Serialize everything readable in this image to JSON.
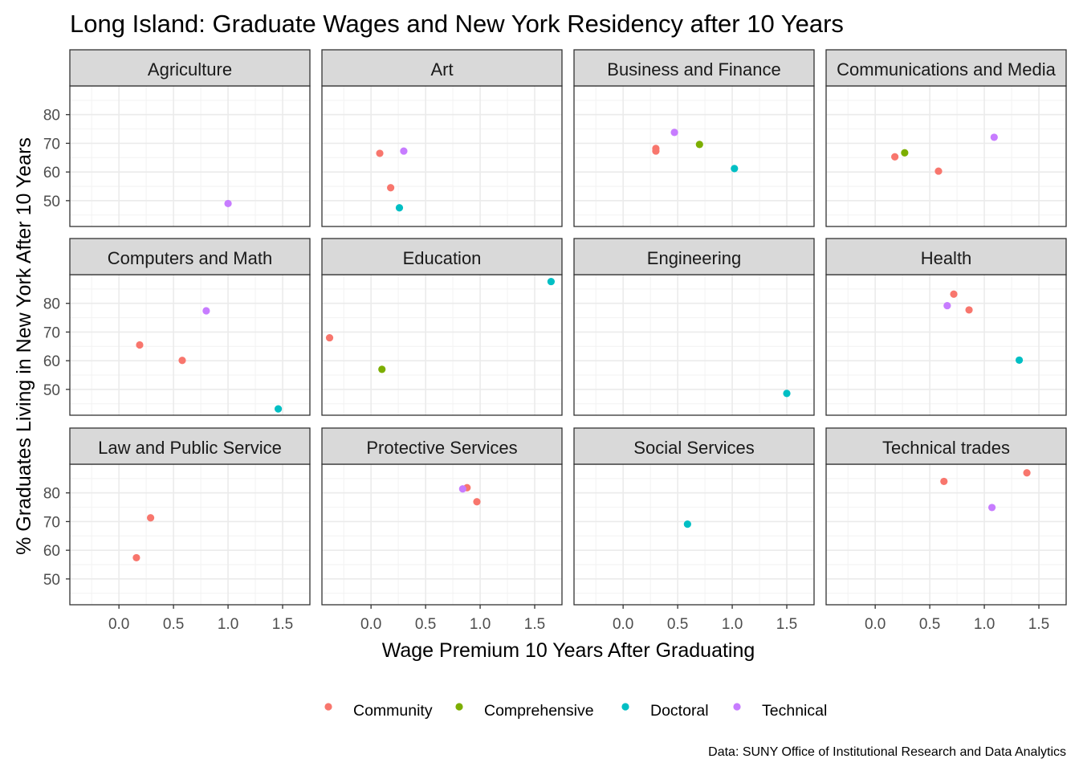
{
  "chart_data": {
    "type": "scatter",
    "title": "Long Island: Graduate Wages and New York Residency after 10 Years",
    "xlabel": "Wage Premium 10 Years After Graduating",
    "ylabel": "% Graduates Living in New York After 10 Years",
    "caption": "Data: SUNY Office of Institutional Research and Data Analytics",
    "xlim": [
      -0.45,
      1.75
    ],
    "ylim": [
      41,
      90
    ],
    "x_ticks": [
      0.0,
      0.5,
      1.0,
      1.5
    ],
    "x_tick_labels": [
      "0.0",
      "0.5",
      "1.0",
      "1.5"
    ],
    "y_ticks": [
      50,
      60,
      70,
      80
    ],
    "y_tick_labels": [
      "50",
      "60",
      "70",
      "80"
    ],
    "grid": true,
    "legend_position": "bottom",
    "legend": [
      {
        "name": "Community",
        "color": "#F8766D"
      },
      {
        "name": "Comprehensive",
        "color": "#7CAE00"
      },
      {
        "name": "Doctoral",
        "color": "#00BFC4"
      },
      {
        "name": "Technical",
        "color": "#C77CFF"
      }
    ],
    "facets": [
      {
        "name": "Agriculture",
        "points": [
          {
            "x": 1.0,
            "y": 49,
            "type": "Technical"
          }
        ]
      },
      {
        "name": "Art",
        "points": [
          {
            "x": 0.08,
            "y": 66.5,
            "type": "Community"
          },
          {
            "x": 0.18,
            "y": 54.5,
            "type": "Community"
          },
          {
            "x": 0.3,
            "y": 67.3,
            "type": "Technical"
          },
          {
            "x": 0.26,
            "y": 47.5,
            "type": "Doctoral"
          }
        ]
      },
      {
        "name": "Business and Finance",
        "points": [
          {
            "x": 0.3,
            "y": 68.2,
            "type": "Community"
          },
          {
            "x": 0.3,
            "y": 67.3,
            "type": "Community"
          },
          {
            "x": 0.47,
            "y": 73.8,
            "type": "Technical"
          },
          {
            "x": 0.7,
            "y": 69.6,
            "type": "Comprehensive"
          },
          {
            "x": 1.02,
            "y": 61.2,
            "type": "Doctoral"
          }
        ]
      },
      {
        "name": "Communications and Media",
        "points": [
          {
            "x": 0.18,
            "y": 65.3,
            "type": "Community"
          },
          {
            "x": 0.27,
            "y": 66.7,
            "type": "Comprehensive"
          },
          {
            "x": 0.58,
            "y": 60.3,
            "type": "Community"
          },
          {
            "x": 1.09,
            "y": 72.1,
            "type": "Technical"
          }
        ]
      },
      {
        "name": "Computers and Math",
        "points": [
          {
            "x": 0.19,
            "y": 65.5,
            "type": "Community"
          },
          {
            "x": 0.58,
            "y": 60.1,
            "type": "Community"
          },
          {
            "x": 0.8,
            "y": 77.4,
            "type": "Technical"
          },
          {
            "x": 1.46,
            "y": 43.2,
            "type": "Doctoral"
          }
        ]
      },
      {
        "name": "Education",
        "points": [
          {
            "x": -0.38,
            "y": 68.0,
            "type": "Community"
          },
          {
            "x": 0.1,
            "y": 57.0,
            "type": "Comprehensive"
          },
          {
            "x": 1.65,
            "y": 87.6,
            "type": "Doctoral"
          }
        ]
      },
      {
        "name": "Engineering",
        "points": [
          {
            "x": 1.5,
            "y": 48.6,
            "type": "Doctoral"
          }
        ]
      },
      {
        "name": "Health",
        "points": [
          {
            "x": 0.72,
            "y": 83.2,
            "type": "Community"
          },
          {
            "x": 0.66,
            "y": 79.2,
            "type": "Technical"
          },
          {
            "x": 0.86,
            "y": 77.7,
            "type": "Community"
          },
          {
            "x": 1.32,
            "y": 60.2,
            "type": "Doctoral"
          }
        ]
      },
      {
        "name": "Law and Public Service",
        "points": [
          {
            "x": 0.29,
            "y": 71.3,
            "type": "Community"
          },
          {
            "x": 0.16,
            "y": 57.4,
            "type": "Community"
          }
        ]
      },
      {
        "name": "Protective Services",
        "points": [
          {
            "x": 0.88,
            "y": 81.8,
            "type": "Community"
          },
          {
            "x": 0.84,
            "y": 81.4,
            "type": "Technical"
          },
          {
            "x": 0.97,
            "y": 76.9,
            "type": "Community"
          }
        ]
      },
      {
        "name": "Social Services",
        "points": [
          {
            "x": 0.59,
            "y": 69.1,
            "type": "Doctoral"
          }
        ]
      },
      {
        "name": "Technical trades",
        "points": [
          {
            "x": 0.63,
            "y": 84.0,
            "type": "Community"
          },
          {
            "x": 1.39,
            "y": 87.0,
            "type": "Community"
          },
          {
            "x": 1.07,
            "y": 74.9,
            "type": "Technical"
          }
        ]
      }
    ]
  }
}
